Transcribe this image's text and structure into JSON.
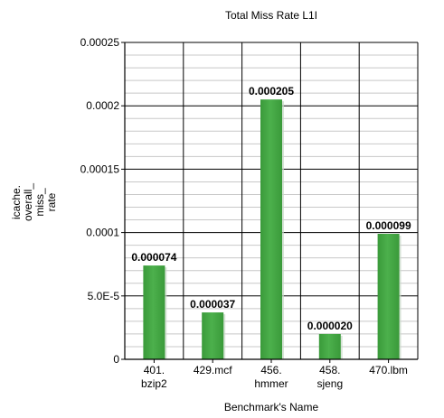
{
  "chart_data": {
    "type": "bar",
    "title": "Total Miss Rate L1I",
    "xlabel": "Benchmark's Name",
    "ylabel": "icache.\noverall_\nmiss_\nrate",
    "ylim": [
      0,
      0.00025
    ],
    "y_major_ticks": [
      "0",
      "5.0E-5",
      "0.0001",
      "0.00015",
      "0.0002",
      "0.00025"
    ],
    "y_major_values": [
      0,
      5e-05,
      0.0001,
      0.00015,
      0.0002,
      0.00025
    ],
    "y_minor_step": 1e-05,
    "grid": true,
    "legend": "none",
    "categories": [
      "401.\nbzip2",
      "429.mcf",
      "456.\nhmmer",
      "458.\nsjeng",
      "470.lbm"
    ],
    "series": [
      {
        "values": [
          7.4e-05,
          3.7e-05,
          0.000205,
          2e-05,
          9.9e-05
        ],
        "labels": [
          "0.000074",
          "0.000037",
          "0.000205",
          "0.000020",
          "0.000099"
        ]
      }
    ],
    "colors": {
      "bar": "#3a9a3a",
      "bar_highlight": "#4cb04c",
      "bar_shadow": "#c8d8c8",
      "grid_major": "#000000",
      "grid_minor": "#c8c8c8",
      "axis": "#000000"
    }
  }
}
